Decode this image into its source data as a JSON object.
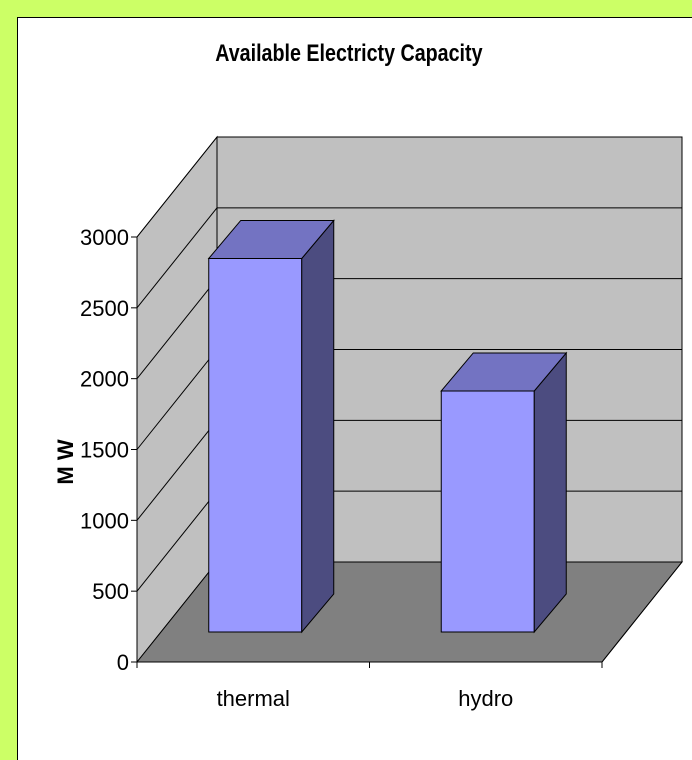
{
  "chart_data": {
    "type": "bar",
    "title": "Available Electricty Capacity",
    "ylabel": "M W",
    "xlabel": "",
    "categories": [
      "thermal",
      "hydro"
    ],
    "values": [
      2650,
      1710
    ],
    "ylim": [
      0,
      3000
    ],
    "yticks": [
      "0",
      "500",
      "1000",
      "1500",
      "2000",
      "2500",
      "3000"
    ],
    "grid": true,
    "legend": "none",
    "colors": {
      "bar_front": "#9999ff",
      "bar_top": "#7373c2",
      "bar_side": "#4c4c80",
      "back_wall": "#c0c0c0",
      "floor": "#808080",
      "background": "#ccff66"
    }
  }
}
